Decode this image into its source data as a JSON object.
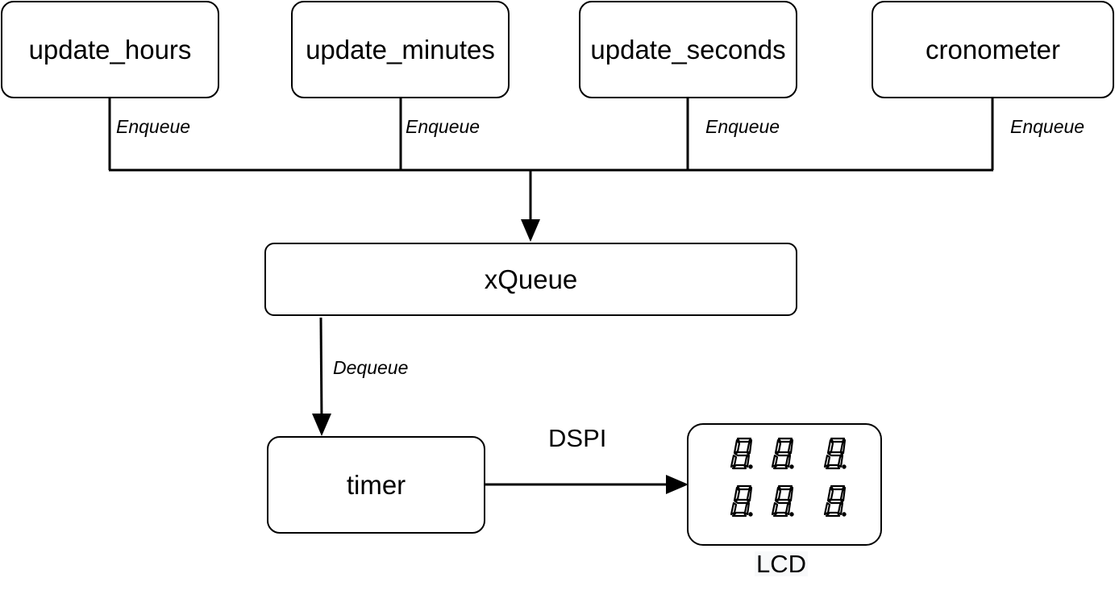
{
  "nodes": {
    "update_hours": "update_hours",
    "update_minutes": "update_minutes",
    "update_seconds": "update_seconds",
    "cronometer": "cronometer",
    "queue": "xQueue",
    "timer": "timer",
    "lcd": "LCD"
  },
  "edges": {
    "enqueue": [
      "Enqueue",
      "Enqueue",
      "Enqueue",
      "Enqueue"
    ],
    "dequeue": "Dequeue",
    "bus": "DSPI"
  },
  "lcd_display": {
    "icon": "seven-segment-digit-icon",
    "rows": 2,
    "digits_per_row": 3
  },
  "colors": {
    "stroke": "#000000",
    "background": "#ffffff"
  }
}
